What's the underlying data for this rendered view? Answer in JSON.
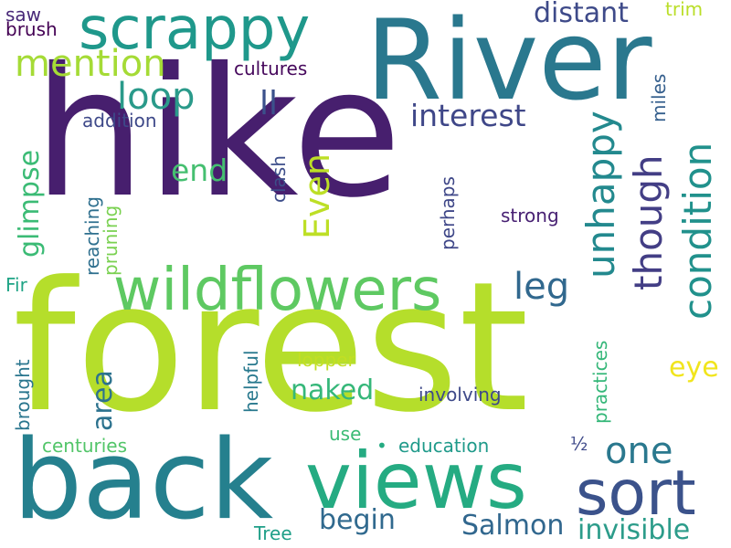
{
  "words": [
    {
      "text": "hike",
      "color": "#471f6e"
    },
    {
      "text": "forest",
      "color": "#b5de2b"
    },
    {
      "text": "River",
      "color": "#2a788e"
    },
    {
      "text": "back",
      "color": "#25808e"
    },
    {
      "text": "views",
      "color": "#25ab82"
    },
    {
      "text": "scrappy",
      "color": "#1f988b"
    },
    {
      "text": "wildflowers",
      "color": "#5ec962"
    },
    {
      "text": "sort",
      "color": "#3b528b"
    },
    {
      "text": "mention",
      "color": "#a5db36"
    },
    {
      "text": "loop",
      "color": "#2a9a8a"
    },
    {
      "text": "unhappy",
      "color": "#23898e"
    },
    {
      "text": "condition",
      "color": "#21918c"
    },
    {
      "text": "though",
      "color": "#433e85"
    },
    {
      "text": "distant",
      "color": "#3e4a89"
    },
    {
      "text": "interest",
      "color": "#3f4788"
    },
    {
      "text": "Even",
      "color": "#bddf26"
    },
    {
      "text": "end",
      "color": "#45bf70"
    },
    {
      "text": "one",
      "color": "#2a788e"
    },
    {
      "text": "leg",
      "color": "#31688e"
    },
    {
      "text": "glimpse",
      "color": "#3bbb75"
    },
    {
      "text": "area",
      "color": "#2c728e"
    },
    {
      "text": "naked",
      "color": "#35b779"
    },
    {
      "text": "begin",
      "color": "#30698e"
    },
    {
      "text": "Salmon",
      "color": "#31678e"
    },
    {
      "text": "invisible",
      "color": "#2c9c8a"
    },
    {
      "text": "ll",
      "color": "#3b518b"
    },
    {
      "text": "eye",
      "color": "#f1e51d"
    },
    {
      "text": "trim",
      "color": "#bade28"
    },
    {
      "text": "saw",
      "color": "#482878"
    },
    {
      "text": "brush",
      "color": "#440154"
    },
    {
      "text": "cultures",
      "color": "#46085c"
    },
    {
      "text": "addition",
      "color": "#3e4989"
    },
    {
      "text": "miles",
      "color": "#355f8d"
    },
    {
      "text": "strong",
      "color": "#482173"
    },
    {
      "text": "perhaps",
      "color": "#3f4788"
    },
    {
      "text": "clash",
      "color": "#3d4e8a"
    },
    {
      "text": "reaching",
      "color": "#2e6f8e"
    },
    {
      "text": "pruning",
      "color": "#7ad151"
    },
    {
      "text": "Fir",
      "color": "#20a486"
    },
    {
      "text": "brought",
      "color": "#2a768e"
    },
    {
      "text": "helpful",
      "color": "#29798e"
    },
    {
      "text": "lopper",
      "color": "#c2df23"
    },
    {
      "text": "involving",
      "color": "#3e4989"
    },
    {
      "text": "practices",
      "color": "#35b779"
    },
    {
      "text": "use",
      "color": "#3bbb75"
    },
    {
      "text": "centuries",
      "color": "#52c569"
    },
    {
      "text": "education",
      "color": "#1f9a8a"
    },
    {
      "text": "½",
      "color": "#3e4989"
    },
    {
      "text": "•",
      "color": "#25ab82"
    },
    {
      "text": "Tree",
      "color": "#1f9f88"
    }
  ]
}
